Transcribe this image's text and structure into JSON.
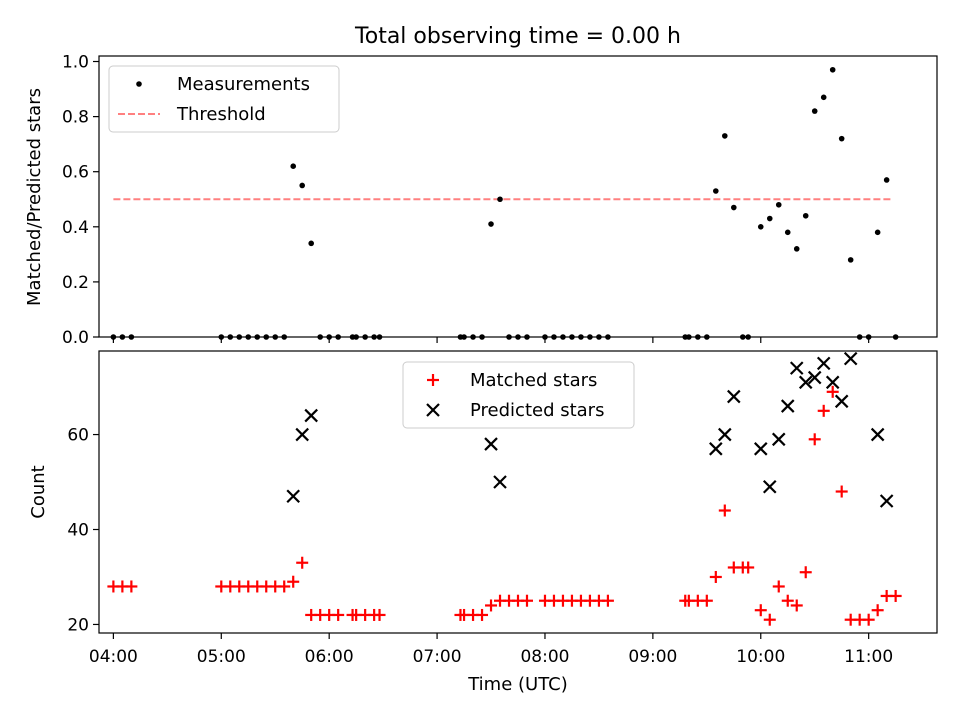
{
  "chart_data": {
    "title": "Total observing time = 0.00 h",
    "xlabel": "Time (UTC)",
    "xlim": [
      "03:52",
      "11:38"
    ],
    "x_ticks": [
      "04:00",
      "05:00",
      "06:00",
      "07:00",
      "08:00",
      "09:00",
      "10:00",
      "11:00"
    ],
    "panels": [
      {
        "type": "scatter",
        "ylabel": "Matched/Predicted stars",
        "ylim": [
          0,
          1.02
        ],
        "y_ticks": [
          0.0,
          0.2,
          0.4,
          0.6,
          0.8,
          1.0
        ],
        "y_tick_labels": [
          "0.0",
          "0.2",
          "0.4",
          "0.6",
          "0.8",
          "1.0"
        ],
        "legend_position": "top-left",
        "threshold": {
          "name": "Threshold",
          "value": 0.5,
          "x_range": [
            "04:00",
            "11:13"
          ],
          "color": "#ff8080",
          "style": "dashed"
        },
        "series": [
          {
            "name": "Measurements",
            "marker": "dot",
            "color": "#000000",
            "points": [
              [
                "04:00",
                0.0
              ],
              [
                "04:05",
                0.0
              ],
              [
                "04:10",
                0.0
              ],
              [
                "05:00",
                0.0
              ],
              [
                "05:05",
                0.0
              ],
              [
                "05:10",
                0.0
              ],
              [
                "05:15",
                0.0
              ],
              [
                "05:20",
                0.0
              ],
              [
                "05:25",
                0.0
              ],
              [
                "05:30",
                0.0
              ],
              [
                "05:35",
                0.0
              ],
              [
                "05:40",
                0.62
              ],
              [
                "05:45",
                0.55
              ],
              [
                "05:50",
                0.34
              ],
              [
                "05:55",
                0.0
              ],
              [
                "06:00",
                0.0
              ],
              [
                "06:05",
                0.0
              ],
              [
                "06:13",
                0.0
              ],
              [
                "06:15",
                0.0
              ],
              [
                "06:20",
                0.0
              ],
              [
                "06:25",
                0.0
              ],
              [
                "06:28",
                0.0
              ],
              [
                "07:13",
                0.0
              ],
              [
                "07:15",
                0.0
              ],
              [
                "07:20",
                0.0
              ],
              [
                "07:25",
                0.0
              ],
              [
                "07:30",
                0.41
              ],
              [
                "07:35",
                0.5
              ],
              [
                "07:40",
                0.0
              ],
              [
                "07:45",
                0.0
              ],
              [
                "07:50",
                0.0
              ],
              [
                "08:00",
                0.0
              ],
              [
                "08:05",
                0.0
              ],
              [
                "08:10",
                0.0
              ],
              [
                "08:15",
                0.0
              ],
              [
                "08:20",
                0.0
              ],
              [
                "08:25",
                0.0
              ],
              [
                "08:30",
                0.0
              ],
              [
                "08:35",
                0.0
              ],
              [
                "09:18",
                0.0
              ],
              [
                "09:20",
                0.0
              ],
              [
                "09:25",
                0.0
              ],
              [
                "09:30",
                0.0
              ],
              [
                "09:35",
                0.53
              ],
              [
                "09:40",
                0.73
              ],
              [
                "09:45",
                0.47
              ],
              [
                "09:50",
                0.0
              ],
              [
                "09:53",
                0.0
              ],
              [
                "10:00",
                0.4
              ],
              [
                "10:05",
                0.43
              ],
              [
                "10:10",
                0.48
              ],
              [
                "10:15",
                0.38
              ],
              [
                "10:20",
                0.32
              ],
              [
                "10:25",
                0.44
              ],
              [
                "10:30",
                0.82
              ],
              [
                "10:35",
                0.87
              ],
              [
                "10:40",
                0.97
              ],
              [
                "10:45",
                0.72
              ],
              [
                "10:50",
                0.28
              ],
              [
                "10:55",
                0.0
              ],
              [
                "11:00",
                0.0
              ],
              [
                "11:05",
                0.38
              ],
              [
                "11:10",
                0.57
              ],
              [
                "11:15",
                0.0
              ]
            ]
          }
        ]
      },
      {
        "type": "scatter",
        "ylabel": "Count",
        "ylim": [
          18.2,
          77.6
        ],
        "y_ticks": [
          20,
          40,
          60
        ],
        "y_tick_labels": [
          "20",
          "40",
          "60"
        ],
        "legend_position": "upper center",
        "series": [
          {
            "name": "Matched stars",
            "marker": "plus",
            "color": "#ff0000",
            "points": [
              [
                "04:00",
                28
              ],
              [
                "04:05",
                28
              ],
              [
                "04:10",
                28
              ],
              [
                "05:00",
                28
              ],
              [
                "05:05",
                28
              ],
              [
                "05:10",
                28
              ],
              [
                "05:15",
                28
              ],
              [
                "05:20",
                28
              ],
              [
                "05:25",
                28
              ],
              [
                "05:30",
                28
              ],
              [
                "05:35",
                28
              ],
              [
                "05:40",
                29
              ],
              [
                "05:45",
                33
              ],
              [
                "05:50",
                22
              ],
              [
                "05:55",
                22
              ],
              [
                "06:00",
                22
              ],
              [
                "06:05",
                22
              ],
              [
                "06:13",
                22
              ],
              [
                "06:15",
                22
              ],
              [
                "06:20",
                22
              ],
              [
                "06:25",
                22
              ],
              [
                "06:28",
                22
              ],
              [
                "07:13",
                22
              ],
              [
                "07:15",
                22
              ],
              [
                "07:20",
                22
              ],
              [
                "07:25",
                22
              ],
              [
                "07:30",
                24
              ],
              [
                "07:35",
                25
              ],
              [
                "07:40",
                25
              ],
              [
                "07:45",
                25
              ],
              [
                "07:50",
                25
              ],
              [
                "08:00",
                25
              ],
              [
                "08:05",
                25
              ],
              [
                "08:10",
                25
              ],
              [
                "08:15",
                25
              ],
              [
                "08:20",
                25
              ],
              [
                "08:25",
                25
              ],
              [
                "08:30",
                25
              ],
              [
                "08:35",
                25
              ],
              [
                "09:18",
                25
              ],
              [
                "09:20",
                25
              ],
              [
                "09:25",
                25
              ],
              [
                "09:30",
                25
              ],
              [
                "09:35",
                30
              ],
              [
                "09:40",
                44
              ],
              [
                "09:45",
                32
              ],
              [
                "09:50",
                32
              ],
              [
                "09:53",
                32
              ],
              [
                "10:00",
                23
              ],
              [
                "10:05",
                21
              ],
              [
                "10:10",
                28
              ],
              [
                "10:15",
                25
              ],
              [
                "10:20",
                24
              ],
              [
                "10:25",
                31
              ],
              [
                "10:30",
                59
              ],
              [
                "10:35",
                65
              ],
              [
                "10:40",
                69
              ],
              [
                "10:45",
                48
              ],
              [
                "10:50",
                21
              ],
              [
                "10:55",
                21
              ],
              [
                "11:00",
                21
              ],
              [
                "11:05",
                23
              ],
              [
                "11:10",
                26
              ],
              [
                "11:15",
                26
              ]
            ]
          },
          {
            "name": "Predicted stars",
            "marker": "x",
            "color": "#000000",
            "points": [
              [
                "05:40",
                47
              ],
              [
                "05:45",
                60
              ],
              [
                "05:50",
                64
              ],
              [
                "07:30",
                58
              ],
              [
                "07:35",
                50
              ],
              [
                "09:35",
                57
              ],
              [
                "09:40",
                60
              ],
              [
                "09:45",
                68
              ],
              [
                "10:00",
                57
              ],
              [
                "10:05",
                49
              ],
              [
                "10:10",
                59
              ],
              [
                "10:15",
                66
              ],
              [
                "10:20",
                74
              ],
              [
                "10:25",
                71
              ],
              [
                "10:30",
                72
              ],
              [
                "10:35",
                75
              ],
              [
                "10:40",
                71
              ],
              [
                "10:45",
                67
              ],
              [
                "10:50",
                76
              ],
              [
                "11:05",
                60
              ],
              [
                "11:10",
                46
              ]
            ]
          }
        ]
      }
    ]
  }
}
